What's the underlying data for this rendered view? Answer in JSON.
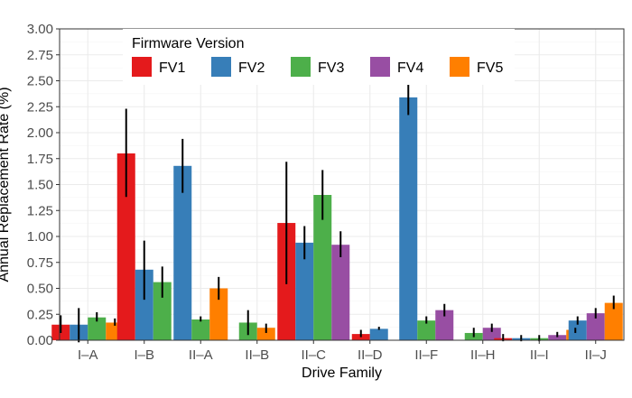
{
  "chart_data": {
    "type": "bar",
    "xlabel": "Drive Family",
    "ylabel": "Annual Replacement Rate (%)",
    "ylim": [
      0,
      3.0
    ],
    "yticks": [
      0.0,
      0.25,
      0.5,
      0.75,
      1.0,
      1.25,
      1.5,
      1.75,
      2.0,
      2.25,
      2.5,
      2.75,
      3.0
    ],
    "ytick_labels": [
      "0.00",
      "0.25",
      "0.50",
      "0.75",
      "1.00",
      "1.25",
      "1.50",
      "1.75",
      "2.00",
      "2.25",
      "2.50",
      "2.75",
      "3.00"
    ],
    "grid": true,
    "legend": {
      "title": "Firmware Version",
      "placement": "top"
    },
    "categories": [
      "I–A",
      "I–B",
      "II–A",
      "II–B",
      "II–C",
      "II–D",
      "II–F",
      "II–H",
      "II–I",
      "II–J"
    ],
    "series": [
      {
        "name": "FV1",
        "color": "#e41a1c"
      },
      {
        "name": "FV2",
        "color": "#377eb8"
      },
      {
        "name": "FV3",
        "color": "#4daf4a"
      },
      {
        "name": "FV4",
        "color": "#984ea3"
      },
      {
        "name": "FV5",
        "color": "#ff7f00"
      }
    ],
    "groups": [
      {
        "category": "I–A",
        "bars": [
          {
            "series": "FV1",
            "value": 0.15,
            "err_low": 0.07,
            "err_high": 0.24
          },
          {
            "series": "FV2",
            "value": 0.15,
            "err_low": -0.02,
            "err_high": 0.31
          },
          {
            "series": "FV3",
            "value": 0.22,
            "err_low": 0.18,
            "err_high": 0.27
          },
          {
            "series": "FV5",
            "value": 0.17,
            "err_low": 0.14,
            "err_high": 0.21
          }
        ]
      },
      {
        "category": "I–B",
        "bars": [
          {
            "series": "FV1",
            "value": 1.8,
            "err_low": 1.38,
            "err_high": 2.23
          },
          {
            "series": "FV2",
            "value": 0.68,
            "err_low": 0.39,
            "err_high": 0.96
          },
          {
            "series": "FV3",
            "value": 0.56,
            "err_low": 0.41,
            "err_high": 0.71
          }
        ]
      },
      {
        "category": "II–A",
        "bars": [
          {
            "series": "FV2",
            "value": 1.68,
            "err_low": 1.42,
            "err_high": 1.94
          },
          {
            "series": "FV3",
            "value": 0.2,
            "err_low": 0.18,
            "err_high": 0.23
          },
          {
            "series": "FV5",
            "value": 0.5,
            "err_low": 0.39,
            "err_high": 0.61
          }
        ]
      },
      {
        "category": "II–B",
        "bars": [
          {
            "series": "FV3",
            "value": 0.17,
            "err_low": 0.05,
            "err_high": 0.29
          },
          {
            "series": "FV5",
            "value": 0.12,
            "err_low": 0.07,
            "err_high": 0.16
          }
        ]
      },
      {
        "category": "II–C",
        "bars": [
          {
            "series": "FV1",
            "value": 1.13,
            "err_low": 0.54,
            "err_high": 1.72
          },
          {
            "series": "FV2",
            "value": 0.94,
            "err_low": 0.78,
            "err_high": 1.1
          },
          {
            "series": "FV3",
            "value": 1.4,
            "err_low": 1.16,
            "err_high": 1.64
          },
          {
            "series": "FV4",
            "value": 0.92,
            "err_low": 0.8,
            "err_high": 1.05
          }
        ]
      },
      {
        "category": "II–D",
        "bars": [
          {
            "series": "FV1",
            "value": 0.06,
            "err_low": 0.03,
            "err_high": 0.1
          },
          {
            "series": "FV2",
            "value": 0.11,
            "err_low": 0.1,
            "err_high": 0.13
          }
        ]
      },
      {
        "category": "II–F",
        "bars": [
          {
            "series": "FV2",
            "value": 2.34,
            "err_low": 2.17,
            "err_high": 2.51
          },
          {
            "series": "FV3",
            "value": 0.19,
            "err_low": 0.16,
            "err_high": 0.23
          },
          {
            "series": "FV4",
            "value": 0.29,
            "err_low": 0.23,
            "err_high": 0.35
          }
        ]
      },
      {
        "category": "II–H",
        "bars": [
          {
            "series": "FV3",
            "value": 0.07,
            "err_low": 0.03,
            "err_high": 0.12
          },
          {
            "series": "FV4",
            "value": 0.12,
            "err_low": 0.08,
            "err_high": 0.16
          }
        ]
      },
      {
        "category": "II–I",
        "bars": [
          {
            "series": "FV1",
            "value": 0.02,
            "err_low": -0.01,
            "err_high": 0.06
          },
          {
            "series": "FV2",
            "value": 0.02,
            "err_low": -0.01,
            "err_high": 0.05
          },
          {
            "series": "FV3",
            "value": 0.02,
            "err_low": -0.01,
            "err_high": 0.05
          },
          {
            "series": "FV4",
            "value": 0.05,
            "err_low": 0.03,
            "err_high": 0.08
          },
          {
            "series": "FV5",
            "value": 0.1,
            "err_low": 0.07,
            "err_high": 0.12
          }
        ]
      },
      {
        "category": "II–J",
        "bars": [
          {
            "series": "FV2",
            "value": 0.19,
            "err_low": 0.15,
            "err_high": 0.23
          },
          {
            "series": "FV4",
            "value": 0.26,
            "err_low": 0.21,
            "err_high": 0.31
          },
          {
            "series": "FV5",
            "value": 0.36,
            "err_low": 0.3,
            "err_high": 0.43
          }
        ]
      }
    ]
  }
}
